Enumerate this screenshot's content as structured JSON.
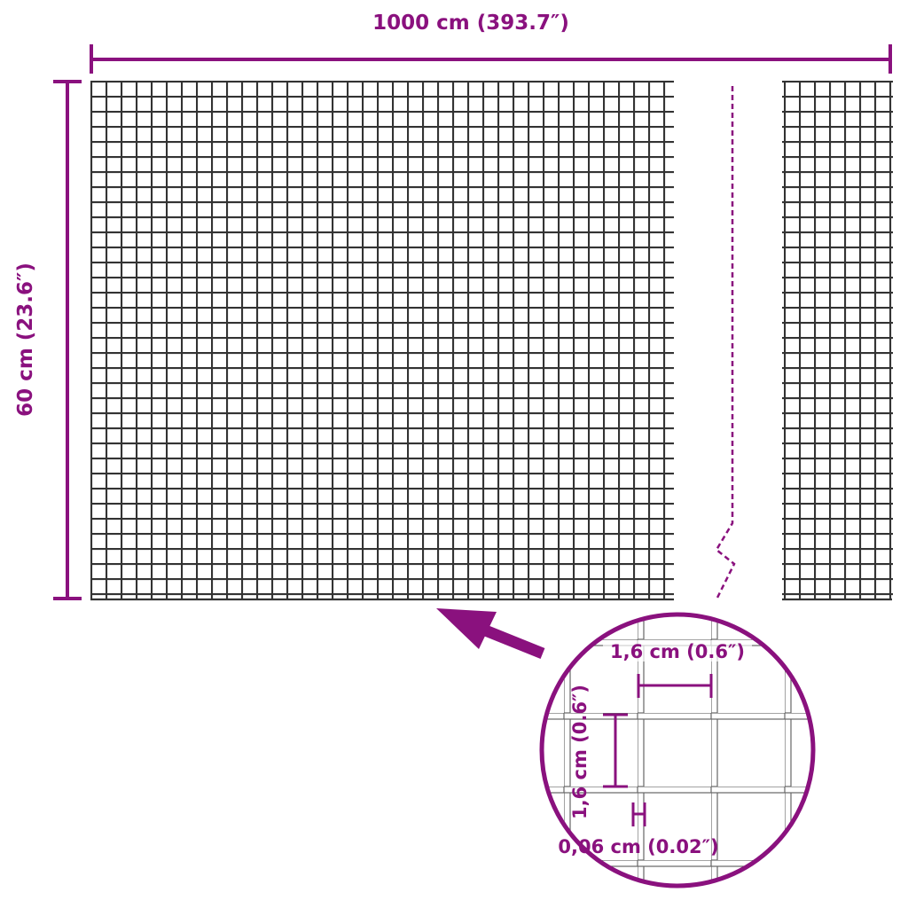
{
  "dimensions": {
    "length": "1000 cm (393.7″)",
    "height": "60 cm (23.6″)",
    "mesh_width": "1,6 cm (0.6″)",
    "mesh_height": "1,6 cm (0.6″)",
    "wire_thickness": "0,06 cm (0.02″)"
  },
  "colors": {
    "accent": "#8a117e",
    "mesh": "#333333"
  }
}
